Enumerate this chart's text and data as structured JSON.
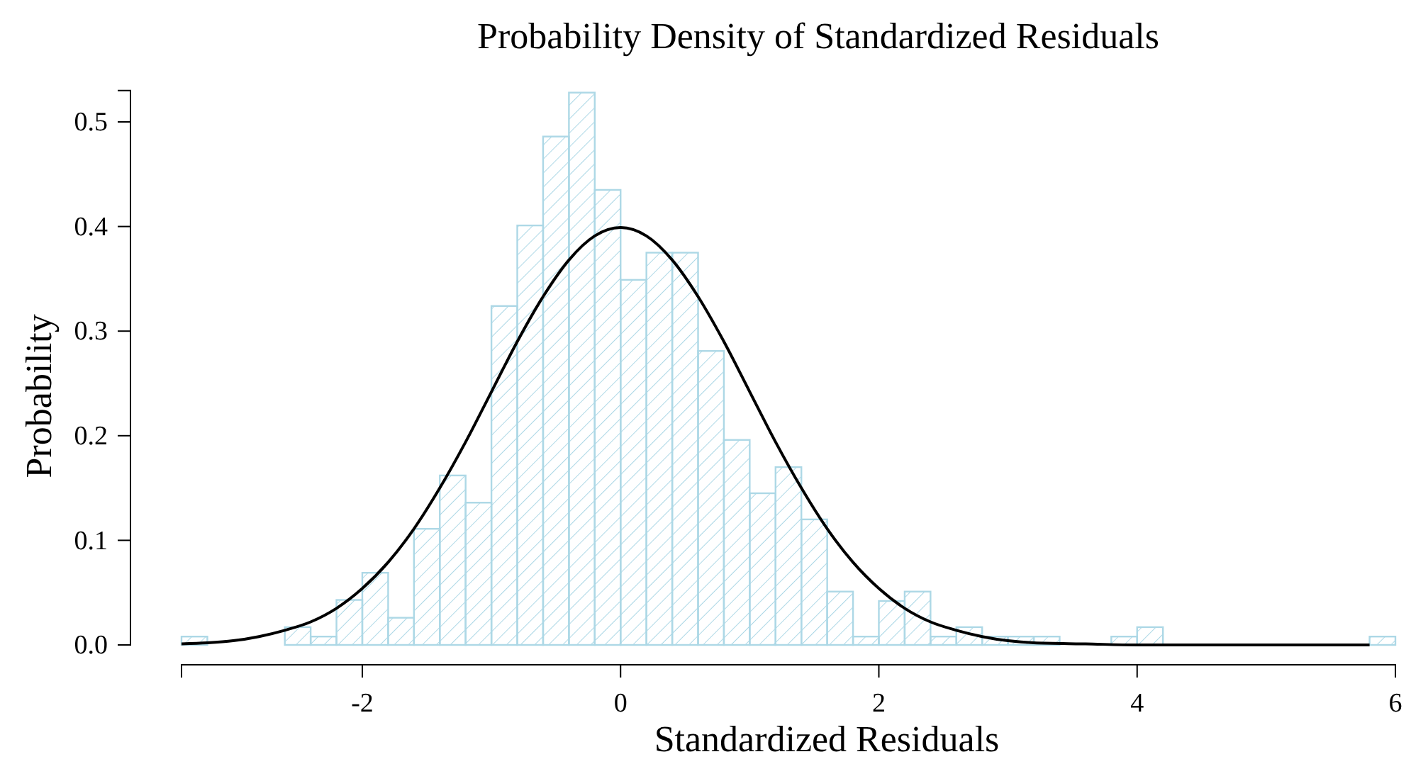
{
  "chart_data": {
    "type": "histogram",
    "title": "Probability Density of Standardized Residuals",
    "xlabel": "Standardized Residuals",
    "ylabel": "Probability",
    "xlim": [
      -3.4,
      6.0
    ],
    "ylim": [
      0,
      0.53
    ],
    "xticks": [
      -2,
      0,
      2,
      4,
      6
    ],
    "yticks": [
      {
        "value": 0,
        "label": "0.0"
      },
      0.1,
      0.2,
      0.3,
      0.4,
      0.5
    ],
    "grid": false,
    "series": [
      {
        "color": "#add8e6",
        "bins": [
          -3.4,
          -3.2,
          -3.0,
          -2.8,
          -2.6,
          -2.4,
          -2.2,
          -2.0,
          -1.8,
          -1.6,
          -1.4,
          -1.2,
          -1.0,
          -0.8,
          -0.6,
          -0.4,
          -0.2,
          0,
          0.2,
          0.4,
          0.6,
          0.8,
          1.0,
          1.2,
          1.4,
          1.6,
          1.8,
          2.0,
          2.2,
          2.4,
          2.6,
          2.8,
          3.0,
          3.2,
          3.4,
          3.6,
          3.8,
          4.0,
          4.2,
          4.4,
          4.6,
          4.8,
          5.0,
          5.2,
          5.4,
          5.6,
          5.8,
          6.0
        ],
        "values": [
          0.008,
          0,
          0,
          0,
          0.017,
          0.008,
          0.043,
          0.069,
          0.026,
          0.111,
          0.162,
          0.136,
          0.324,
          0.401,
          0.486,
          0.528,
          0.435,
          0.349,
          0.375,
          0.375,
          0.281,
          0.196,
          0.145,
          0.17,
          0.12,
          0.051,
          0.008,
          0.042,
          0.051,
          0.008,
          0.017,
          0.008,
          0.008,
          0.008,
          0,
          0,
          0.008,
          0.017,
          0,
          0,
          0,
          0,
          0,
          0,
          0,
          0,
          0.008
        ]
      },
      {
        "type": "line",
        "color": "#000000",
        "x": [
          -3.4,
          -3.2,
          -3.0,
          -2.8,
          -2.6,
          -2.4,
          -2.2,
          -2.0,
          -1.8,
          -1.6,
          -1.4,
          -1.2,
          -1.0,
          -0.8,
          -0.6,
          -0.4,
          -0.2,
          0,
          0.2,
          0.4,
          0.6,
          0.8,
          1.0,
          1.2,
          1.4,
          1.6,
          1.8,
          2.0,
          2.2,
          2.4,
          2.6,
          2.8,
          3.0,
          3.2,
          3.6,
          4.0,
          5.0,
          5.8
        ],
        "values": [
          0.001,
          0.002,
          0.004,
          0.008,
          0.014,
          0.022,
          0.035,
          0.054,
          0.079,
          0.111,
          0.15,
          0.194,
          0.242,
          0.29,
          0.333,
          0.368,
          0.391,
          0.399,
          0.391,
          0.368,
          0.333,
          0.29,
          0.242,
          0.194,
          0.15,
          0.111,
          0.079,
          0.054,
          0.035,
          0.022,
          0.014,
          0.008,
          0.004,
          0.002,
          0.001,
          0,
          0,
          0
        ]
      }
    ]
  }
}
